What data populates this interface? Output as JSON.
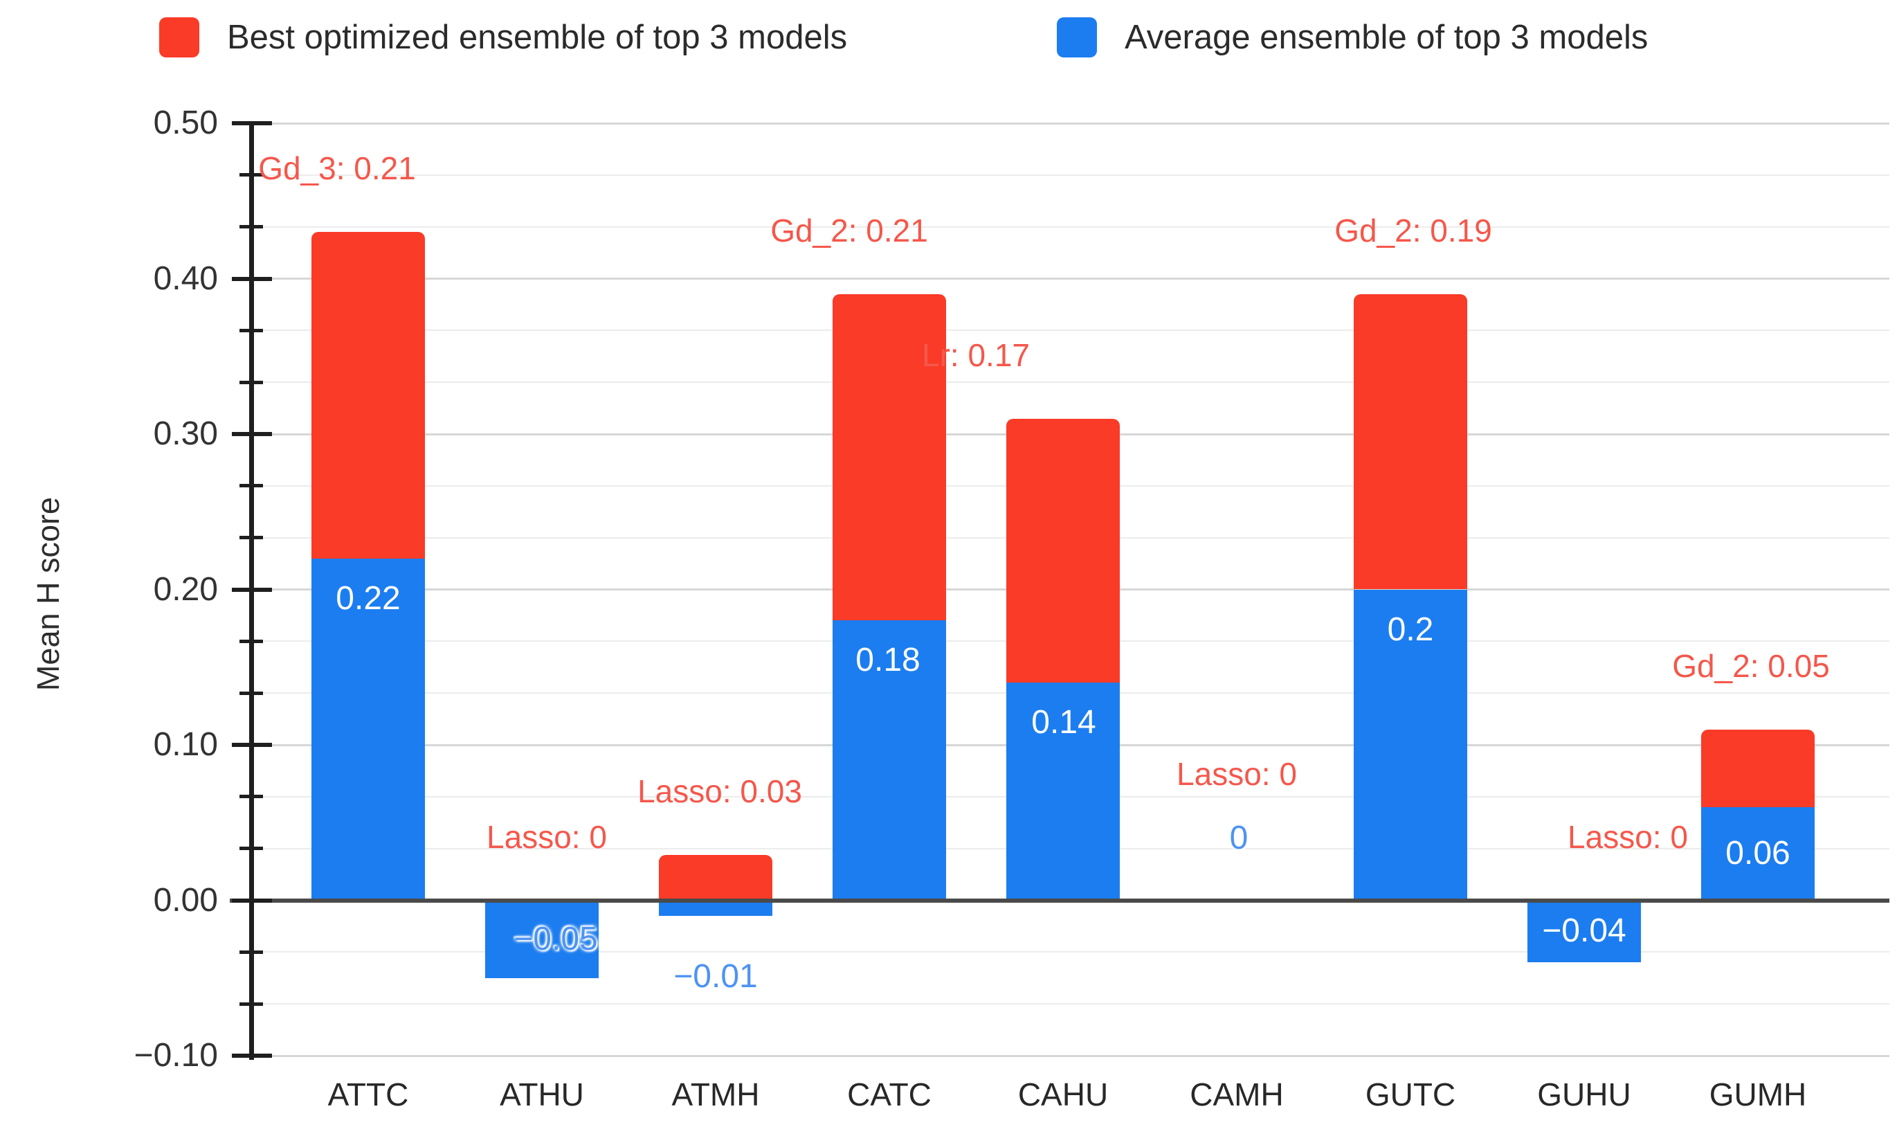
{
  "legend": {
    "items": [
      {
        "label": "Best optimized ensemble of top 3 models",
        "color": "#F93B27"
      },
      {
        "label": "Average ensemble of top 3 models",
        "color": "#1C7DF0"
      }
    ]
  },
  "chart_data": {
    "type": "bar",
    "stacked": true,
    "title": "",
    "xlabel": "",
    "ylabel": "Mean H score",
    "ylim": [
      -0.1,
      0.5
    ],
    "ytick_step": 0.1,
    "y_minor_divisions_per_major": 3,
    "grid": true,
    "legend_position": "top",
    "ytick_labels": [
      "0.50",
      "0.40",
      "0.30",
      "0.20",
      "0.10",
      "0.00",
      "−0.10"
    ],
    "categories": [
      "ATTC",
      "ATHU",
      "ATMH",
      "CATC",
      "CAHU",
      "CAMH",
      "GUTC",
      "GUHU",
      "GUMH"
    ],
    "series": [
      {
        "name": "Average ensemble of top 3 models",
        "color": "#1C7DF0",
        "values": [
          0.22,
          -0.05,
          -0.01,
          0.18,
          0.14,
          0,
          0.2,
          -0.04,
          0.06
        ],
        "labels": [
          "0.22",
          "−0.05",
          "−0.01",
          "0.18",
          "0.14",
          "0",
          "0.2",
          "−0.04",
          "0.06"
        ]
      },
      {
        "name": "Best optimized ensemble of top 3 models",
        "color": "#F93B27",
        "stack_top_values": [
          0.43,
          0,
          0.029,
          0.39,
          0.31,
          0,
          0.39,
          0,
          0.11
        ],
        "annotations": [
          "Gd_3: 0.21",
          "Lasso: 0",
          "Lasso: 0.03",
          "Gd_2: 0.21",
          "Lr: 0.17",
          "Lasso: 0",
          "Gd_2: 0.19",
          "Lasso: 0",
          "Gd_2: 0.05"
        ]
      }
    ]
  },
  "colors": {
    "bar_red": "#F93B27",
    "bar_blue": "#1C7DF0",
    "annotation_red": "#F5574B",
    "label_blue": "#4E93F4",
    "grid_minor": "#ECECEC",
    "grid_major": "#D7D7D7",
    "baseline": "#4A4A4A",
    "axis": "#1F1F1F"
  }
}
